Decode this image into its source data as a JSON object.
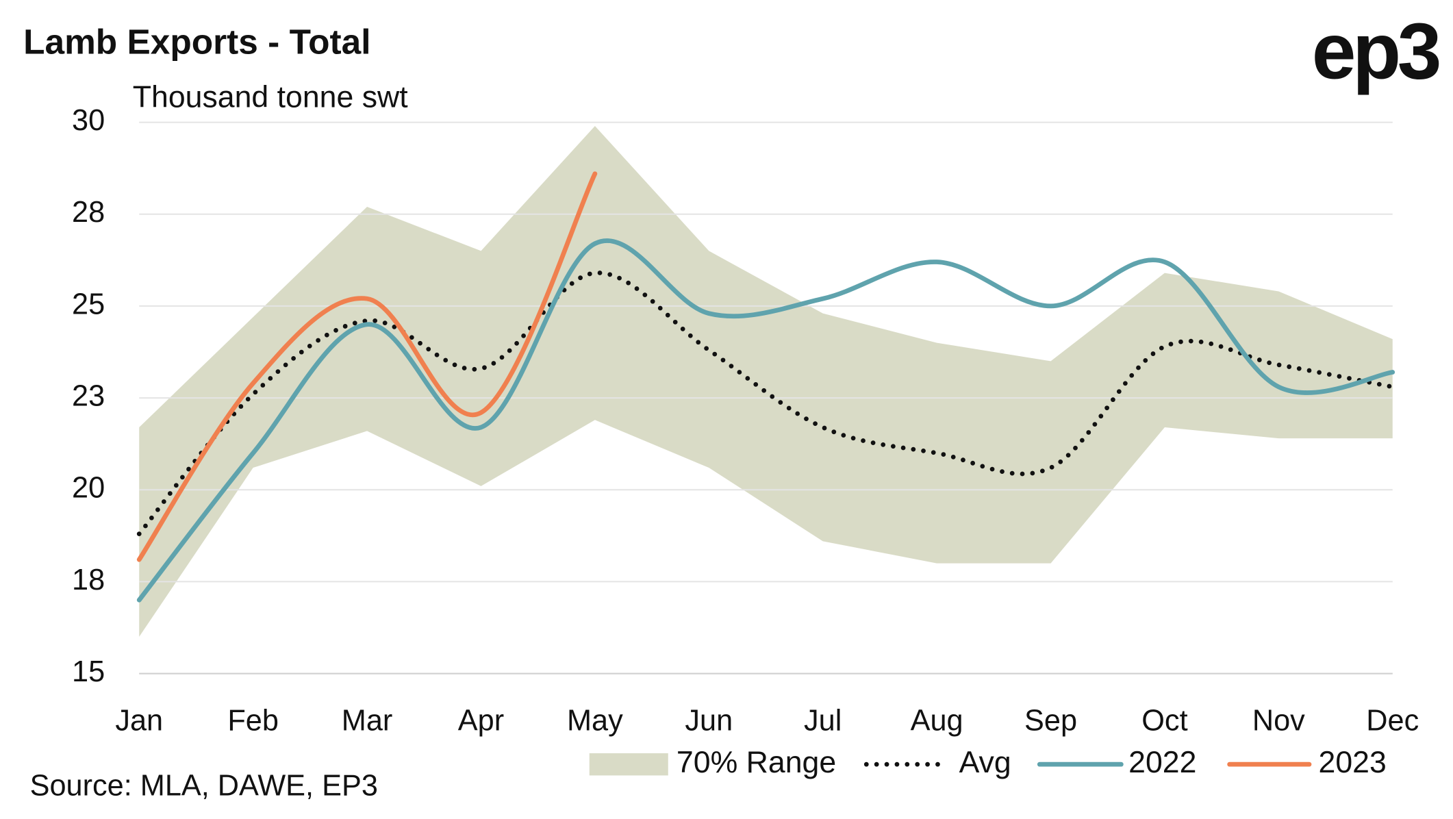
{
  "chart_data": {
    "type": "line",
    "title": "Lamb Exports - Total",
    "subtitle": "Thousand tonne swt",
    "logo": "ep3",
    "source": "Source: MLA, DAWE, EP3",
    "categories": [
      "Jan",
      "Feb",
      "Mar",
      "Apr",
      "May",
      "Jun",
      "Jul",
      "Aug",
      "Sep",
      "Oct",
      "Nov",
      "Dec"
    ],
    "ylim": [
      15,
      30
    ],
    "yticks": [
      15,
      {
        "value": 17.5,
        "label": "18"
      },
      20,
      {
        "value": 22.5,
        "label": "23"
      },
      25,
      {
        "value": 27.5,
        "label": "28"
      },
      30
    ],
    "grid": true,
    "legend": "bottom",
    "range": {
      "name": "70% Range",
      "color": "#d9dbc6",
      "upper": [
        21.7,
        24.7,
        27.7,
        26.5,
        29.9,
        26.5,
        24.8,
        24.0,
        23.5,
        25.9,
        25.4,
        24.1
      ],
      "lower": [
        16.0,
        20.6,
        21.6,
        20.1,
        21.9,
        20.6,
        18.6,
        18.0,
        18.0,
        21.7,
        21.4,
        21.4
      ]
    },
    "series": [
      {
        "name": "Avg",
        "color": "#111111",
        "dash": "dotted",
        "values": [
          18.8,
          22.6,
          24.6,
          23.3,
          25.9,
          23.8,
          21.7,
          21.0,
          20.6,
          23.9,
          23.4,
          22.8
        ]
      },
      {
        "name": "2022",
        "color": "#5fa3ad",
        "values": [
          17.0,
          21.0,
          24.5,
          21.7,
          26.7,
          24.8,
          25.2,
          26.2,
          25.0,
          26.2,
          22.8,
          23.2
        ]
      },
      {
        "name": "2023",
        "color": "#f0804f",
        "values": [
          18.1,
          22.9,
          25.2,
          22.1,
          28.6,
          null,
          null,
          null,
          null,
          null,
          null,
          null
        ]
      }
    ]
  }
}
